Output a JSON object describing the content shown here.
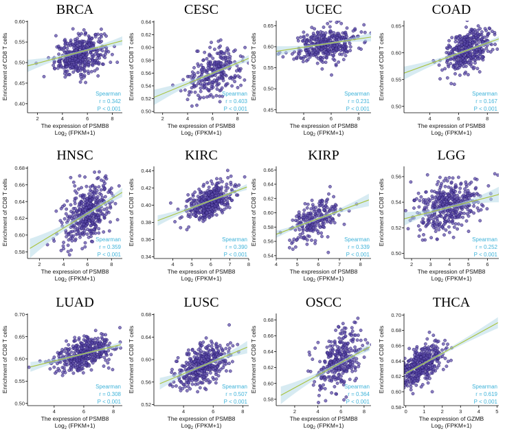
{
  "figure": {
    "ylabel": "Enrichment of CD8 T cells",
    "stat_label": "Spearman",
    "p_label": "P < 0.001",
    "log_prefix": "Log",
    "log_sub": "2",
    "log_suffix": " (FPKM+1)"
  },
  "chart_data": [
    {
      "type": "scatter",
      "title": "BRCA",
      "xlabel": "The expression of PSMB8",
      "xlim": [
        1.2,
        8.8
      ],
      "ylim": [
        0.378,
        0.602
      ],
      "xticks": [
        2,
        4,
        6,
        8
      ],
      "yticks": [
        0.4,
        0.45,
        0.5,
        0.55,
        0.6
      ],
      "r": "r = 0.342",
      "fit": [
        [
          1.2,
          0.492
        ],
        [
          8.8,
          0.553
        ]
      ],
      "cx": 5.4,
      "sx": 1.0,
      "cy": 0.518,
      "sy": 0.027,
      "n": 420
    },
    {
      "type": "scatter",
      "title": "CESC",
      "xlabel": "The expression of PSMB8",
      "xlim": [
        1.3,
        8.9
      ],
      "ylim": [
        0.498,
        0.642
      ],
      "xticks": [
        2,
        4,
        6,
        8
      ],
      "yticks": [
        0.5,
        0.52,
        0.54,
        0.56,
        0.58,
        0.6,
        0.62,
        0.64
      ],
      "r": "r = 0.403",
      "fit": [
        [
          1.3,
          0.522
        ],
        [
          8.9,
          0.583
        ]
      ],
      "cx": 6.2,
      "sx": 1.1,
      "cy": 0.562,
      "sy": 0.022,
      "n": 280
    },
    {
      "type": "scatter",
      "title": "UCEC",
      "xlabel": "The expression of PSMB8",
      "xlim": [
        2.0,
        8.9
      ],
      "ylim": [
        0.443,
        0.662
      ],
      "xticks": [
        4,
        6,
        8
      ],
      "yticks": [
        0.45,
        0.5,
        0.55,
        0.6,
        0.65
      ],
      "r": "r = 0.231",
      "fit": [
        [
          2.0,
          0.589
        ],
        [
          8.9,
          0.623
        ]
      ],
      "cx": 5.6,
      "sx": 1.1,
      "cy": 0.605,
      "sy": 0.022,
      "n": 380
    },
    {
      "type": "scatter",
      "title": "COAD",
      "xlabel": "The expression of PSMB8",
      "xlim": [
        2.2,
        8.8
      ],
      "ylim": [
        0.488,
        0.66
      ],
      "xticks": [
        4,
        6,
        8
      ],
      "yticks": [
        0.5,
        0.55,
        0.6,
        0.65
      ],
      "r": "r = 0.167",
      "fit": [
        [
          2.2,
          0.562
        ],
        [
          8.8,
          0.626
        ]
      ],
      "cx": 6.6,
      "sx": 0.8,
      "cy": 0.604,
      "sy": 0.022,
      "n": 380
    },
    {
      "type": "scatter",
      "title": "HNSC",
      "xlabel": "The expression of PSMB8",
      "xlim": [
        1.0,
        8.9
      ],
      "ylim": [
        0.572,
        0.682
      ],
      "xticks": [
        2,
        4,
        6,
        8
      ],
      "yticks": [
        0.58,
        0.6,
        0.62,
        0.64,
        0.66,
        0.68
      ],
      "r": "r = 0.359",
      "fit": [
        [
          1.2,
          0.584
        ],
        [
          8.9,
          0.651
        ]
      ],
      "cx": 6.0,
      "sx": 1.0,
      "cy": 0.627,
      "sy": 0.021,
      "n": 420
    },
    {
      "type": "scatter",
      "title": "KIRC",
      "xlabel": "The expression of PSMB8",
      "xlim": [
        3.0,
        8.0
      ],
      "ylim": [
        0.338,
        0.445
      ],
      "xticks": [
        4,
        5,
        6,
        7,
        8
      ],
      "yticks": [
        0.34,
        0.36,
        0.38,
        0.4,
        0.42,
        0.44
      ],
      "r": "r = 0.390",
      "fit": [
        [
          3.2,
          0.382
        ],
        [
          7.9,
          0.421
        ]
      ],
      "cx": 6.0,
      "sx": 0.6,
      "cy": 0.404,
      "sy": 0.011,
      "n": 420
    },
    {
      "type": "scatter",
      "title": "KIRP",
      "xlabel": "The expression of PSMB8",
      "xlim": [
        4.0,
        8.5
      ],
      "ylim": [
        0.536,
        0.665
      ],
      "xticks": [
        4,
        5,
        6,
        7,
        8
      ],
      "yticks": [
        0.54,
        0.56,
        0.58,
        0.6,
        0.62,
        0.64,
        0.66
      ],
      "r": "r = 0.339",
      "fit": [
        [
          4.0,
          0.57
        ],
        [
          8.4,
          0.618
        ]
      ],
      "cx": 5.8,
      "sx": 0.6,
      "cy": 0.59,
      "sy": 0.016,
      "n": 230
    },
    {
      "type": "scatter",
      "title": "LGG",
      "xlabel": "The expression of PSMB8",
      "xlim": [
        1.6,
        6.6
      ],
      "ylim": [
        0.496,
        0.568
      ],
      "xticks": [
        2,
        3,
        4,
        5,
        6
      ],
      "yticks": [
        0.5,
        0.52,
        0.54,
        0.56
      ],
      "r": "r = 0.252",
      "fit": [
        [
          1.6,
          0.527
        ],
        [
          6.6,
          0.546
        ]
      ],
      "cx": 4.0,
      "sx": 0.9,
      "cy": 0.536,
      "sy": 0.011,
      "n": 420
    },
    {
      "type": "scatter",
      "title": "LUAD",
      "xlabel": "The expression of PSMB8",
      "xlim": [
        2.2,
        8.6
      ],
      "ylim": [
        0.495,
        0.702
      ],
      "xticks": [
        4,
        6,
        8
      ],
      "yticks": [
        0.5,
        0.55,
        0.6,
        0.65,
        0.7
      ],
      "r": "r = 0.308",
      "fit": [
        [
          2.4,
          0.582
        ],
        [
          8.5,
          0.632
        ]
      ],
      "cx": 6.0,
      "sx": 0.9,
      "cy": 0.612,
      "sy": 0.02,
      "n": 420
    },
    {
      "type": "scatter",
      "title": "LUSC",
      "xlabel": "The expression of PSMB8",
      "xlim": [
        2.0,
        8.4
      ],
      "ylim": [
        0.518,
        0.682
      ],
      "xticks": [
        4,
        6,
        8
      ],
      "yticks": [
        0.52,
        0.56,
        0.6,
        0.64,
        0.68
      ],
      "r": "r = 0.507",
      "fit": [
        [
          2.4,
          0.557
        ],
        [
          8.3,
          0.622
        ]
      ],
      "cx": 5.3,
      "sx": 0.9,
      "cy": 0.589,
      "sy": 0.02,
      "n": 420
    },
    {
      "type": "scatter",
      "title": "OSCC",
      "xlabel": "The expression of PSMB8",
      "xlim": [
        0.4,
        8.6
      ],
      "ylim": [
        0.572,
        0.688
      ],
      "xticks": [
        2,
        4,
        6,
        8
      ],
      "yticks": [
        0.58,
        0.6,
        0.62,
        0.64,
        0.66,
        0.68
      ],
      "r": "r = 0.364",
      "fit": [
        [
          0.8,
          0.585
        ],
        [
          8.5,
          0.646
        ]
      ],
      "cx": 5.8,
      "sx": 1.0,
      "cy": 0.628,
      "sy": 0.02,
      "n": 330
    },
    {
      "type": "scatter",
      "title": "THCA",
      "xlabel": "The expression of GZMB",
      "xlim": [
        -0.1,
        5.1
      ],
      "ylim": [
        0.582,
        0.702
      ],
      "xticks": [
        0,
        1,
        2,
        3,
        4,
        5
      ],
      "yticks": [
        0.58,
        0.6,
        0.62,
        0.64,
        0.66,
        0.68,
        0.7
      ],
      "r": "r = 0.619",
      "fit": [
        [
          0.0,
          0.624
        ],
        [
          5.05,
          0.69
        ]
      ],
      "cx": 0.8,
      "sx": 0.7,
      "cy": 0.634,
      "sy": 0.013,
      "n": 420
    }
  ]
}
